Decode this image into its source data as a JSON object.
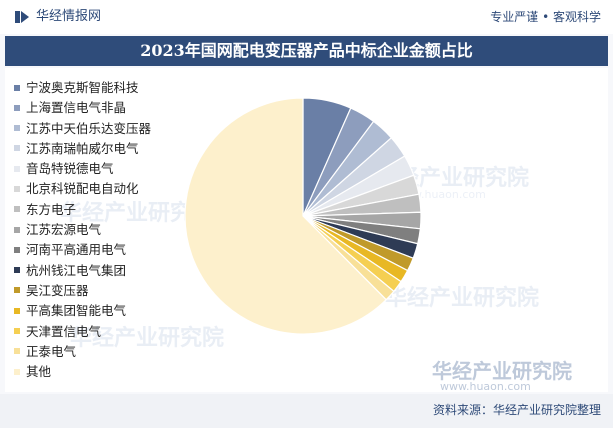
{
  "header": {
    "brand": "华经情报网",
    "tagline": "专业严谨 • 客观科学"
  },
  "footer": {
    "source": "资料来源：华经产业研究院整理"
  },
  "watermark": {
    "name": "华经产业研究院",
    "url": "www.huaon.com"
  },
  "chart_data": {
    "type": "pie",
    "title": "2023年国网配电变压器产品中标企业金额占比",
    "legend_position": "left",
    "start_angle_deg": 0,
    "direction": "clockwise",
    "categories": [
      "宁波奥克斯智能科技",
      "上海置信电气非晶",
      "江苏中天伯乐达变压器",
      "江苏南瑞帕威尔电气",
      "音岛特锐德电气",
      "北京科锐配电自动化",
      "东方电子",
      "江苏宏源电气",
      "河南平高通用电气",
      "杭州钱江电气集团",
      "吴江变压器",
      "平高集团智能电气",
      "天津置信电气",
      "正泰电气",
      "其他"
    ],
    "values": [
      6.5,
      3.5,
      3.2,
      3.0,
      2.8,
      2.6,
      2.4,
      2.2,
      2.0,
      2.0,
      1.8,
      1.7,
      1.6,
      1.5,
      61.2
    ],
    "colors": [
      "#6a7fa6",
      "#8d9dbd",
      "#afbcd3",
      "#cfd6e3",
      "#e6e9ef",
      "#d8d8d8",
      "#bfbfbf",
      "#a6a6a6",
      "#7f7f7f",
      "#2e3b55",
      "#c09a2a",
      "#e8b824",
      "#f5cf52",
      "#f8e098",
      "#fdf0cc"
    ]
  }
}
